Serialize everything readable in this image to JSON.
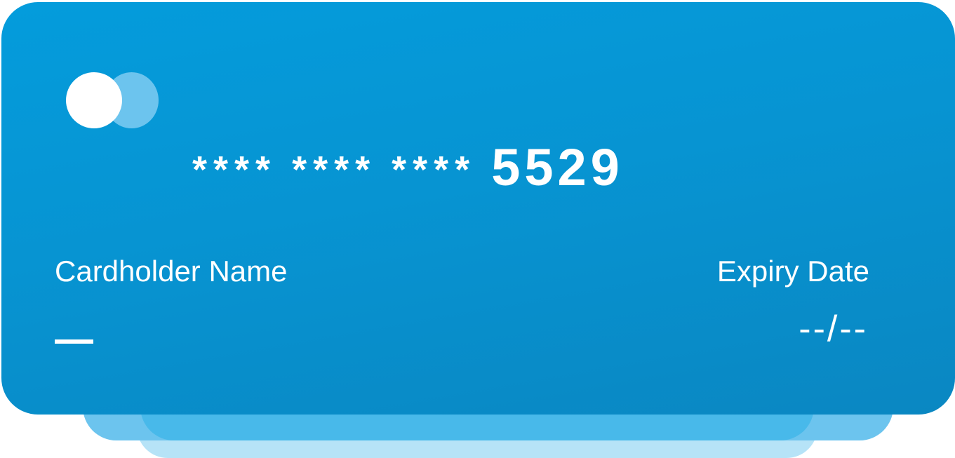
{
  "card": {
    "number_groups": [
      "****",
      "****",
      "****"
    ],
    "number_last4": "5529",
    "cardholder_label": "Cardholder Name",
    "cardholder_value": "—",
    "expiry_label": "Expiry Date",
    "expiry_value": "--/--",
    "logo_icon": "card-brand-circles-icon"
  },
  "colors": {
    "card_start": "#049cdc",
    "card_end": "#0a87c2",
    "stack_mid": "#6cc4ee",
    "stack_back": "#b6e3f7",
    "text": "#ffffff"
  }
}
